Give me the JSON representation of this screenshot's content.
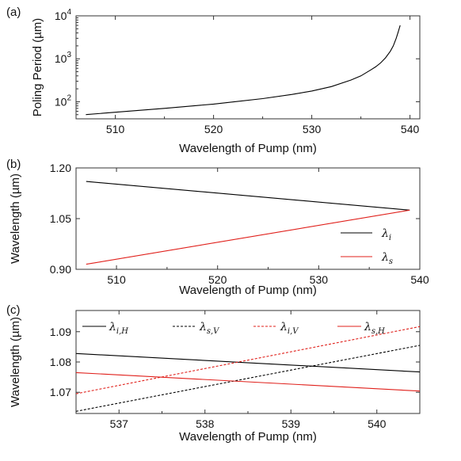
{
  "chart_data": [
    {
      "panel": "(a)",
      "type": "line",
      "xlabel": "Wavelength of Pump (nm)",
      "ylabel": "Poling Period (µm)",
      "xlim": [
        506,
        541
      ],
      "ylim": [
        40,
        10000
      ],
      "yscale": "log",
      "xticks": [
        510,
        520,
        530,
        540
      ],
      "yticks": [
        {
          "value": 100,
          "base": "10",
          "exp": "2"
        },
        {
          "value": 1000,
          "base": "10",
          "exp": "3"
        },
        {
          "value": 10000,
          "base": "10",
          "exp": "4"
        }
      ],
      "series": [
        {
          "color": "#000000",
          "dash": "solid",
          "x": [
            507,
            510,
            515,
            520,
            525,
            528,
            530,
            532,
            534,
            535,
            536,
            536.5,
            537,
            537.5,
            538,
            538.3,
            538.6,
            538.8,
            539
          ],
          "y": [
            50,
            57,
            70,
            88,
            118,
            148,
            178,
            225,
            320,
            400,
            550,
            650,
            800,
            1050,
            1500,
            2000,
            3000,
            4200,
            6000
          ]
        }
      ]
    },
    {
      "panel": "(b)",
      "type": "line",
      "xlabel": "Wavelength of Pump (nm)",
      "ylabel": "Wavelength (µm)",
      "xlim": [
        506,
        540
      ],
      "ylim": [
        0.9,
        1.2
      ],
      "xticks": [
        510,
        520,
        530,
        540
      ],
      "yticks": [
        {
          "value": 0.9,
          "label": "0.90"
        },
        {
          "value": 1.05,
          "label": "1.05"
        },
        {
          "value": 1.2,
          "label": "1.20"
        }
      ],
      "legend_position": "bottom-right",
      "series": [
        {
          "name": "λ",
          "sub": "i",
          "color": "#000000",
          "dash": "solid",
          "x": [
            507,
            539
          ],
          "y": [
            1.16,
            1.075
          ]
        },
        {
          "name": "λ",
          "sub": "s",
          "color": "#e0201b",
          "dash": "solid",
          "x": [
            507,
            539
          ],
          "y": [
            0.915,
            1.075
          ]
        }
      ]
    },
    {
      "panel": "(c)",
      "type": "line",
      "xlabel": "Wavelength of Pump (nm)",
      "ylabel": "Wavelength (µm)",
      "xlim": [
        536.5,
        540.5
      ],
      "ylim": [
        1.063,
        1.097
      ],
      "xticks": [
        537,
        538,
        539,
        540
      ],
      "yticks": [
        {
          "value": 1.07,
          "label": "1.07"
        },
        {
          "value": 1.08,
          "label": "1.08"
        },
        {
          "value": 1.09,
          "label": "1.09"
        }
      ],
      "legend_position": "top",
      "series": [
        {
          "name": "λ",
          "sub": "i,H",
          "color": "#000000",
          "dash": "solid",
          "x": [
            536.5,
            540.5
          ],
          "y": [
            1.0828,
            1.0767
          ]
        },
        {
          "name": "λ",
          "sub": "s,V",
          "color": "#000000",
          "dash": "dashed",
          "x": [
            536.5,
            540.5
          ],
          "y": [
            1.0637,
            1.0855
          ]
        },
        {
          "name": "λ",
          "sub": "i,V",
          "color": "#e0201b",
          "dash": "dashed",
          "x": [
            536.5,
            540.5
          ],
          "y": [
            1.0695,
            1.0917
          ]
        },
        {
          "name": "λ",
          "sub": "s,H",
          "color": "#e0201b",
          "dash": "solid",
          "x": [
            536.5,
            540.5
          ],
          "y": [
            1.0765,
            1.0704
          ]
        }
      ]
    }
  ]
}
